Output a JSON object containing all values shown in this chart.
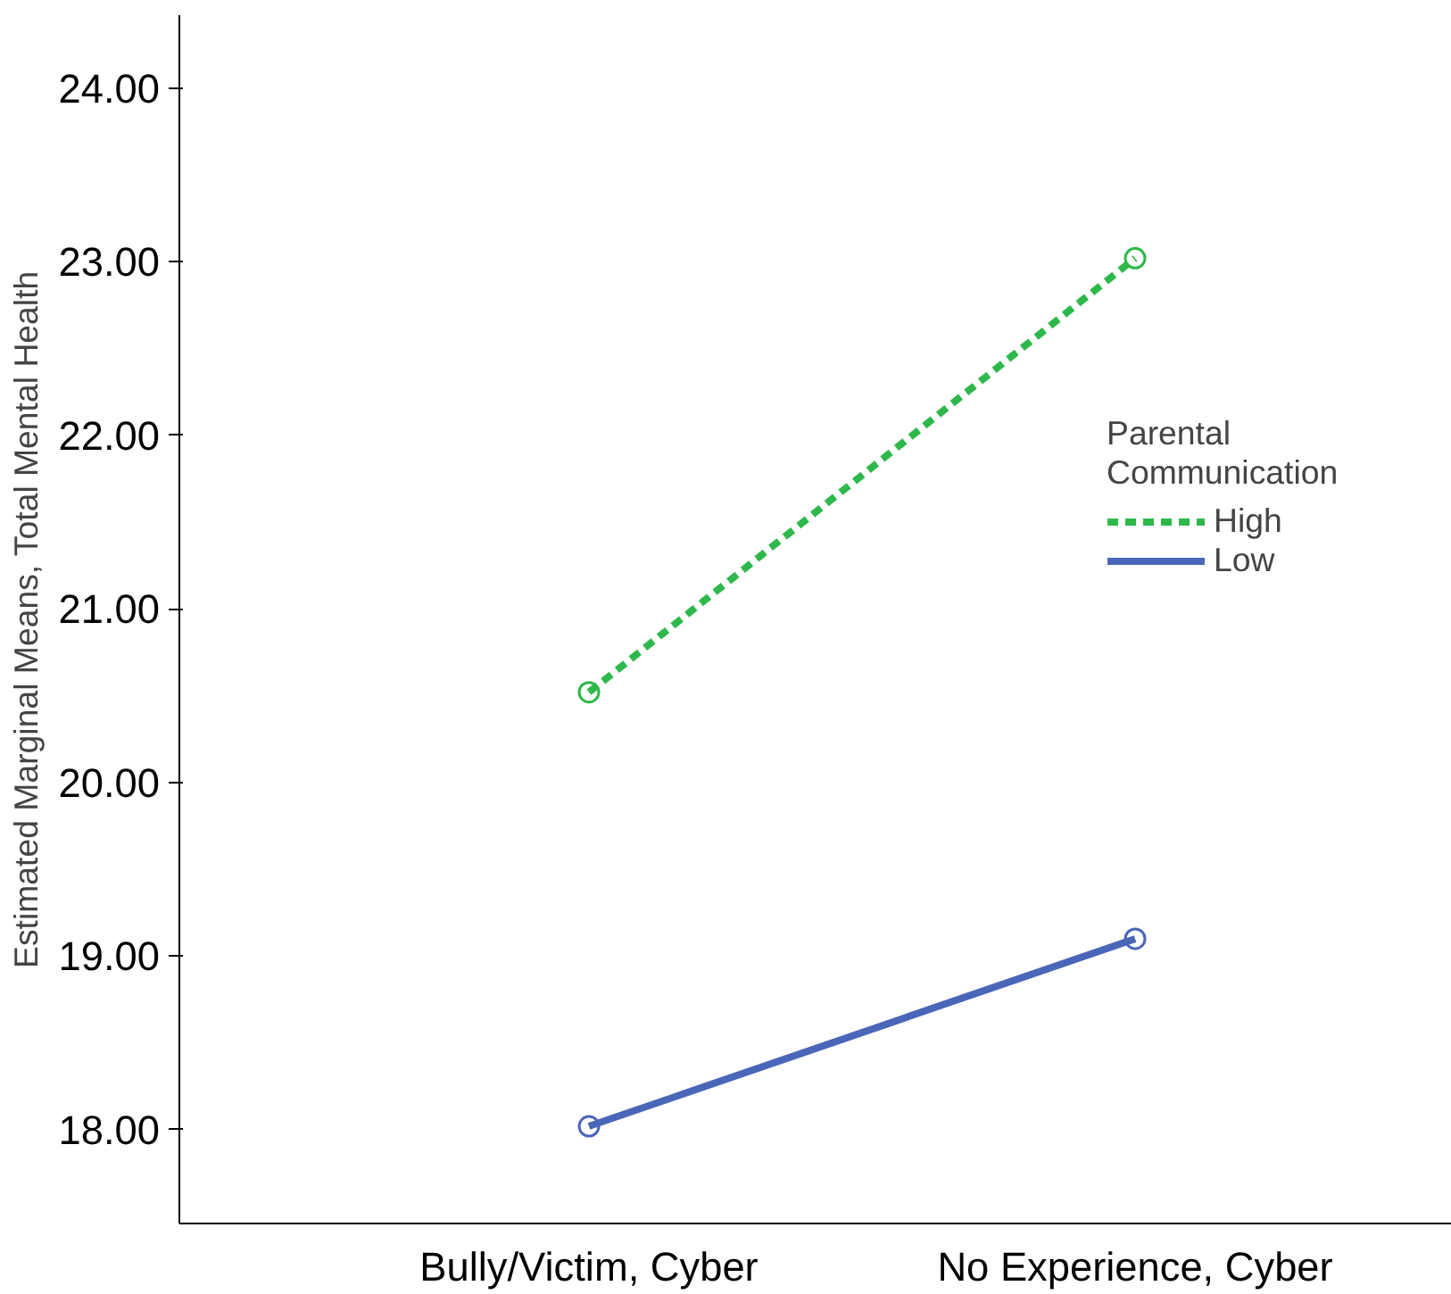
{
  "chart_data": {
    "type": "line",
    "ylabel": "Estimated Marginal Means, Total Mental Health",
    "categories": [
      "Bully/Victim, Cyber",
      "No Experience, Cyber"
    ],
    "series": [
      {
        "name": "High",
        "color": "#2eb84b",
        "values": [
          20.52,
          23.02
        ],
        "line_style": "dashed"
      },
      {
        "name": "Low",
        "color": "#4a66b8",
        "values": [
          18.02,
          19.1
        ],
        "line_style": "solid"
      }
    ],
    "ylim": [
      17.46,
      24.42
    ],
    "yticks": [
      {
        "value": 18,
        "label": "18.00"
      },
      {
        "value": 19,
        "label": "19.00"
      },
      {
        "value": 20,
        "label": "20.00"
      },
      {
        "value": 21,
        "label": "21.00"
      },
      {
        "value": 22,
        "label": "22.00"
      },
      {
        "value": 23,
        "label": "23.00"
      },
      {
        "value": 24,
        "label": "24.00"
      }
    ],
    "legend_title": "Parental\nCommunication",
    "legend": "right",
    "marker": "circle",
    "grid": false
  }
}
